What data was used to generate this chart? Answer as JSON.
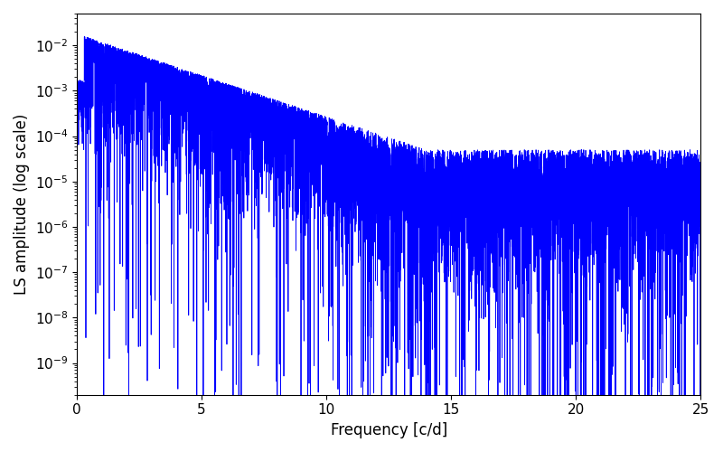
{
  "xlabel": "Frequency [c/d]",
  "ylabel": "LS amplitude (log scale)",
  "line_color": "blue",
  "xlim": [
    0,
    25
  ],
  "ylim_log_min": -9.7,
  "ylim_log_max": -1.3,
  "xfreq_max": 25.0,
  "num_points": 10000,
  "seed": 123,
  "background_color": "#ffffff",
  "tick_labelsize": 11,
  "label_fontsize": 12,
  "linewidth": 0.6
}
